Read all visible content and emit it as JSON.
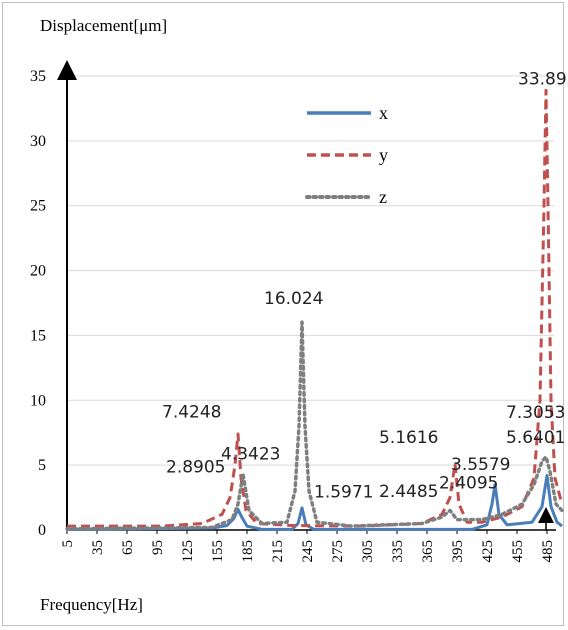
{
  "chart_data": {
    "type": "line",
    "title": "",
    "ylabel": "Displacement[μm]",
    "xlabel": "Frequency[Hz]",
    "ylim": [
      0,
      35
    ],
    "yticks": [
      0,
      5,
      10,
      15,
      20,
      25,
      30,
      35
    ],
    "xticks": [
      5,
      35,
      65,
      95,
      125,
      155,
      185,
      215,
      245,
      275,
      305,
      335,
      365,
      395,
      425,
      455,
      485
    ],
    "xlim": [
      5,
      500
    ],
    "grid": "horizontal",
    "legend": "top-center",
    "colors": {
      "x": "#4a7ebb",
      "y": "#c0504d",
      "z": "#7f7f7f"
    },
    "series": [
      {
        "name": "x",
        "style": "solid",
        "points": [
          [
            5,
            0.05
          ],
          [
            150,
            0.15
          ],
          [
            165,
            0.35
          ],
          [
            172,
            0.9
          ],
          [
            176,
            1.6
          ],
          [
            179,
            1.1
          ],
          [
            185,
            0.3
          ],
          [
            200,
            0.05
          ],
          [
            230,
            0.05
          ],
          [
            236,
            0.5
          ],
          [
            240,
            1.7
          ],
          [
            244,
            0.4
          ],
          [
            252,
            0.05
          ],
          [
            410,
            0.05
          ],
          [
            425,
            0.4
          ],
          [
            430,
            2.0
          ],
          [
            433,
            3.5
          ],
          [
            437,
            1.2
          ],
          [
            445,
            0.4
          ],
          [
            470,
            0.6
          ],
          [
            480,
            1.8
          ],
          [
            485,
            4.2
          ],
          [
            489,
            1.8
          ],
          [
            495,
            0.6
          ],
          [
            500,
            0.3
          ]
        ]
      },
      {
        "name": "y",
        "style": "dashed",
        "points": [
          [
            5,
            0.3
          ],
          [
            100,
            0.3
          ],
          [
            140,
            0.5
          ],
          [
            160,
            1.2
          ],
          [
            168,
            2.5
          ],
          [
            173,
            5.0
          ],
          [
            176,
            7.4
          ],
          [
            179,
            4.0
          ],
          [
            184,
            1.5
          ],
          [
            195,
            0.5
          ],
          [
            230,
            0.35
          ],
          [
            300,
            0.3
          ],
          [
            360,
            0.5
          ],
          [
            380,
            1.2
          ],
          [
            388,
            2.5
          ],
          [
            393,
            5.1
          ],
          [
            397,
            2.0
          ],
          [
            405,
            0.6
          ],
          [
            420,
            0.6
          ],
          [
            440,
            1.0
          ],
          [
            460,
            1.8
          ],
          [
            472,
            4.0
          ],
          [
            478,
            10.0
          ],
          [
            482,
            25.0
          ],
          [
            484,
            33.892
          ],
          [
            486,
            25.0
          ],
          [
            489,
            10.0
          ],
          [
            493,
            4.0
          ],
          [
            500,
            2.0
          ]
        ]
      },
      {
        "name": "z",
        "style": "dotted",
        "points": [
          [
            5,
            0.1
          ],
          [
            150,
            0.2
          ],
          [
            170,
            0.8
          ],
          [
            176,
            2.0
          ],
          [
            181,
            4.3
          ],
          [
            187,
            1.5
          ],
          [
            200,
            0.5
          ],
          [
            225,
            0.6
          ],
          [
            233,
            3.0
          ],
          [
            237,
            8.0
          ],
          [
            240,
            16.024
          ],
          [
            243,
            8.0
          ],
          [
            247,
            3.0
          ],
          [
            255,
            0.6
          ],
          [
            290,
            0.3
          ],
          [
            360,
            0.5
          ],
          [
            380,
            1.0
          ],
          [
            388,
            1.5
          ],
          [
            395,
            0.8
          ],
          [
            420,
            0.8
          ],
          [
            440,
            1.2
          ],
          [
            460,
            2.0
          ],
          [
            472,
            3.5
          ],
          [
            480,
            5.3
          ],
          [
            484,
            5.64
          ],
          [
            488,
            4.5
          ],
          [
            494,
            2.0
          ],
          [
            500,
            1.5
          ]
        ]
      }
    ],
    "data_labels": [
      {
        "text": "33.892",
        "x": 484,
        "y": 33.892
      },
      {
        "text": "16.024",
        "x": 240,
        "y": 16.024
      },
      {
        "text": "7.4248",
        "x": 176,
        "y": 7.4248
      },
      {
        "text": "4.3423",
        "x": 181,
        "y": 4.3423
      },
      {
        "text": "2.8905",
        "x": 176,
        "y": 2.8905
      },
      {
        "text": "1.5971",
        "x": 240,
        "y": 1.5971
      },
      {
        "text": "2.4485",
        "x": 393,
        "y": 2.4485
      },
      {
        "text": "5.1616",
        "x": 393,
        "y": 5.1616
      },
      {
        "text": "2.4095",
        "x": 433,
        "y": 2.4095
      },
      {
        "text": "3.5579",
        "x": 433,
        "y": 3.5579
      },
      {
        "text": "5.6401",
        "x": 484,
        "y": 5.6401
      },
      {
        "text": "7.3053",
        "x": 484,
        "y": 7.3053
      }
    ]
  }
}
